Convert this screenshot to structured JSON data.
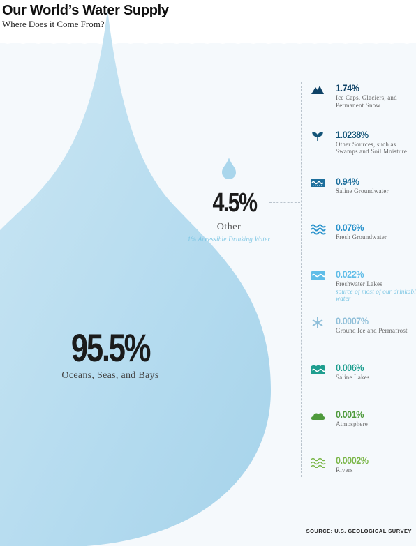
{
  "header": {
    "title": "Our World’s Water Supply",
    "subtitle": "Where Does it Come From?"
  },
  "chart_data": {
    "type": "pie",
    "title": "Our World’s Water Supply",
    "subtitle": "Where Does it Come From?",
    "slices": [
      {
        "label": "Oceans, Seas, and Bays",
        "value": 95.5,
        "display": "95.5%"
      },
      {
        "label": "Other",
        "value": 4.5,
        "display": "4.5%",
        "note": "1% Accessible Drinking Water"
      }
    ],
    "breakdown": [
      {
        "value": 1.74,
        "display": "1.74%",
        "label": "Ice Caps, Glaciers, and Permanent Snow",
        "color": "#0e4266",
        "icon": "mountain-icon"
      },
      {
        "value": 1.0238,
        "display": "1.0238%",
        "label": "Other Sources, such as Swamps and Soil Moisture",
        "color": "#145578",
        "icon": "plant-icon"
      },
      {
        "value": 0.94,
        "display": "0.94%",
        "label": "Saline Groundwater",
        "color": "#1d6f9c",
        "icon": "saline-groundwater-icon"
      },
      {
        "value": 0.076,
        "display": "0.076%",
        "label": "Fresh Groundwater",
        "color": "#2a93cc",
        "icon": "waves-icon"
      },
      {
        "value": 0.022,
        "display": "0.022%",
        "label": "Freshwater Lakes",
        "note": "source of most of our drinkable water",
        "color": "#5fbde8",
        "icon": "lake-icon"
      },
      {
        "value": 0.0007,
        "display": "0.0007%",
        "label": "Ground Ice and Permafrost",
        "color": "#8fbfd9",
        "icon": "snowflake-icon"
      },
      {
        "value": 0.006,
        "display": "0.006%",
        "label": "Saline Lakes",
        "color": "#1e9e8f",
        "icon": "saline-lake-icon"
      },
      {
        "value": 0.001,
        "display": "0.001%",
        "label": "Atmosphere",
        "color": "#4e9a3c",
        "icon": "cloud-icon"
      },
      {
        "value": 0.0002,
        "display": "0.0002%",
        "label": "Rivers",
        "color": "#7ab648",
        "icon": "river-icon"
      }
    ],
    "source": "SOURCE: U.S. GEOLOGICAL SURVEY"
  }
}
